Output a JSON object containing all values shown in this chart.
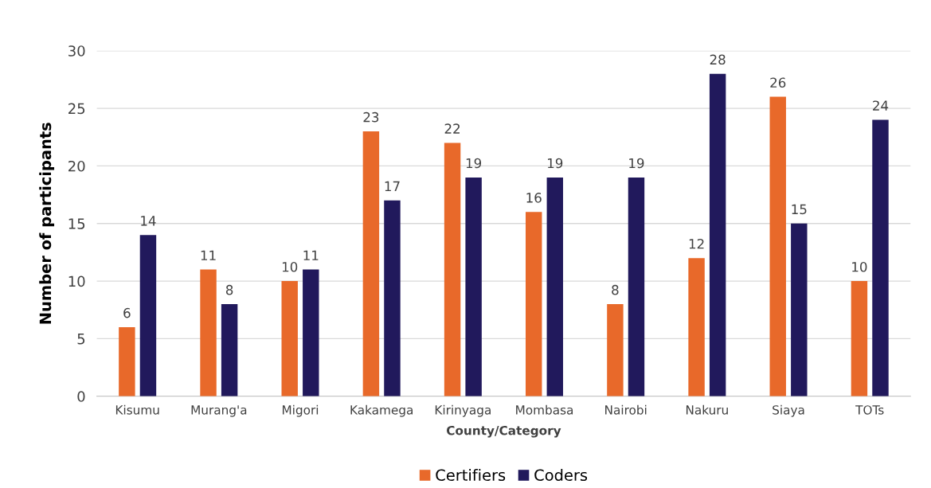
{
  "chart_data": {
    "type": "bar",
    "xlabel": "County/Category",
    "ylabel": "Number of participants",
    "categories": [
      "Kisumu",
      "Murang'a",
      "Migori",
      "Kakamega",
      "Kirinyaga",
      "Mombasa",
      "Nairobi",
      "Nakuru",
      "Siaya",
      "TOTs"
    ],
    "series": [
      {
        "name": "Certifiers",
        "color": "#e8692a",
        "values": [
          6,
          11,
          10,
          23,
          22,
          16,
          8,
          12,
          26,
          10
        ]
      },
      {
        "name": "Coders",
        "color": "#21195c",
        "values": [
          14,
          8,
          11,
          17,
          19,
          19,
          19,
          28,
          15,
          24
        ]
      }
    ],
    "ylim": [
      0,
      30
    ],
    "yticks": [
      0,
      5,
      10,
      15,
      20,
      25,
      30
    ],
    "grid": "y",
    "legend": "bottom",
    "data_labels": true
  }
}
